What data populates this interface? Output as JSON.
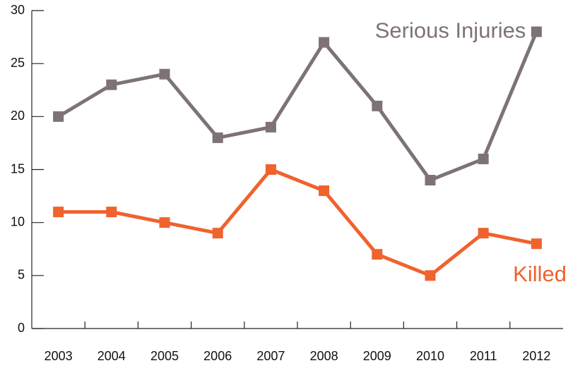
{
  "chart_data": {
    "type": "line",
    "categories": [
      "2003",
      "2004",
      "2005",
      "2006",
      "2007",
      "2008",
      "2009",
      "2010",
      "2011",
      "2012"
    ],
    "series": [
      {
        "name": "Serious Injuries",
        "color": "#7e7374",
        "values": [
          20,
          23,
          24,
          18,
          19,
          27,
          21,
          14,
          16,
          28
        ]
      },
      {
        "name": "Killed",
        "color": "#f0622e",
        "values": [
          11,
          11,
          10,
          9,
          15,
          13,
          7,
          5,
          9,
          8
        ]
      }
    ],
    "ylim": [
      0,
      30
    ],
    "yticks": [
      0,
      5,
      10,
      15,
      20,
      25,
      30
    ],
    "grid": false
  }
}
